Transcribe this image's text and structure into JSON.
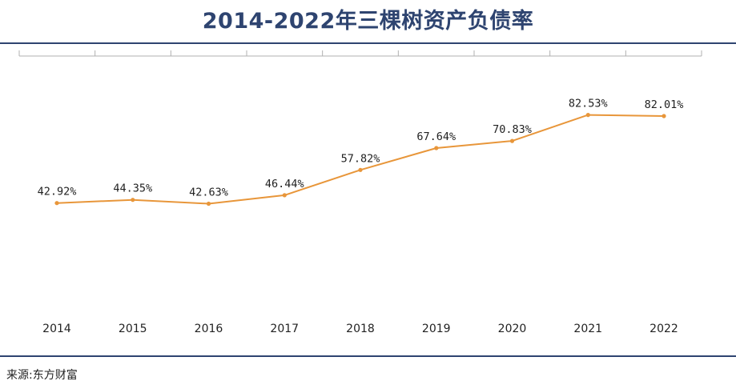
{
  "source_text": "来源:东方财富",
  "chart_data": {
    "type": "line",
    "title": "2014-2022年三棵树资产负债率",
    "xlabel": "",
    "ylabel": "",
    "categories": [
      "2014",
      "2015",
      "2016",
      "2017",
      "2018",
      "2019",
      "2020",
      "2021",
      "2022"
    ],
    "series": [
      {
        "values": [
          42.92,
          44.35,
          42.63,
          46.44,
          57.82,
          67.64,
          70.83,
          82.53,
          82.01
        ],
        "labels": [
          "42.92%",
          "44.35%",
          "42.63%",
          "46.44%",
          "57.82%",
          "67.64%",
          "70.83%",
          "82.53%",
          "82.01%"
        ],
        "color": "#e8963a"
      }
    ],
    "ylim": [
      0,
      100
    ],
    "grid": false,
    "legend": "none",
    "axis_color": "#b0b0b0",
    "text_color": "#222222",
    "accent_color": "#2e4470"
  }
}
